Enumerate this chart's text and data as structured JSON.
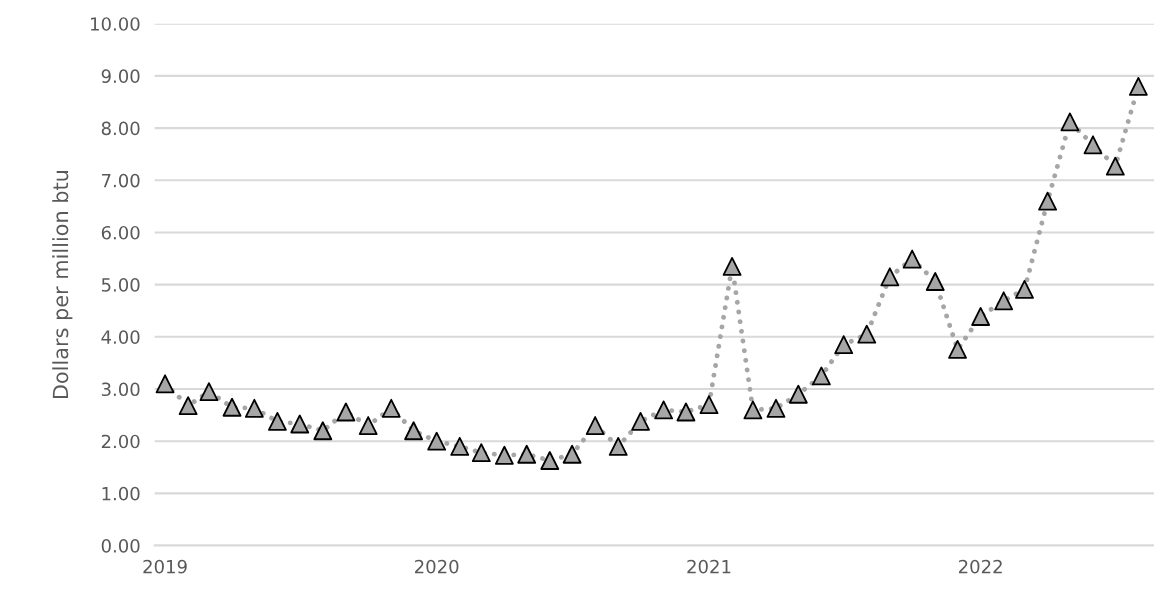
{
  "chart_data": {
    "type": "line",
    "ylabel": "Dollars per million btu",
    "x": [
      "2019-01",
      "2019-02",
      "2019-03",
      "2019-04",
      "2019-05",
      "2019-06",
      "2019-07",
      "2019-08",
      "2019-09",
      "2019-10",
      "2019-11",
      "2019-12",
      "2020-01",
      "2020-02",
      "2020-03",
      "2020-04",
      "2020-05",
      "2020-06",
      "2020-07",
      "2020-08",
      "2020-09",
      "2020-10",
      "2020-11",
      "2020-12",
      "2021-01",
      "2021-02",
      "2021-03",
      "2021-04",
      "2021-05",
      "2021-06",
      "2021-07",
      "2021-08",
      "2021-09",
      "2021-10",
      "2021-11",
      "2021-12",
      "2022-01",
      "2022-02",
      "2022-03",
      "2022-04",
      "2022-05",
      "2022-06",
      "2022-07",
      "2022-08"
    ],
    "series": [
      {
        "color": "#a6a6a6",
        "values": [
          3.1,
          2.68,
          2.95,
          2.65,
          2.63,
          2.38,
          2.33,
          2.2,
          2.56,
          2.3,
          2.63,
          2.2,
          2.0,
          1.9,
          1.78,
          1.73,
          1.75,
          1.63,
          1.75,
          2.3,
          1.9,
          2.38,
          2.6,
          2.56,
          2.7,
          5.35,
          2.6,
          2.63,
          2.9,
          3.25,
          3.85,
          4.05,
          5.15,
          5.49,
          5.06,
          3.76,
          4.39,
          4.69,
          4.91,
          6.6,
          8.12,
          7.68,
          7.27,
          8.8
        ]
      }
    ],
    "marker": "triangle",
    "line_style": "dotted",
    "xlim": [
      "2018-12-18",
      "2022-08-22"
    ],
    "xticks": [
      {
        "value": "2019-01",
        "label": "2019"
      },
      {
        "value": "2020-01",
        "label": "2020"
      },
      {
        "value": "2021-01",
        "label": "2021"
      },
      {
        "value": "2022-01",
        "label": "2022"
      }
    ],
    "ylim": [
      0,
      10
    ],
    "yticks": [
      {
        "value": 0,
        "label": "0.00"
      },
      {
        "value": 1,
        "label": "1.00"
      },
      {
        "value": 2,
        "label": "2.00"
      },
      {
        "value": 3,
        "label": "3.00"
      },
      {
        "value": 4,
        "label": "4.00"
      },
      {
        "value": 5,
        "label": "5.00"
      },
      {
        "value": 6,
        "label": "6.00"
      },
      {
        "value": 7,
        "label": "7.00"
      },
      {
        "value": 8,
        "label": "8.00"
      },
      {
        "value": 9,
        "label": "9.00"
      },
      {
        "value": 10,
        "label": "10.00"
      }
    ],
    "grid": "y"
  }
}
